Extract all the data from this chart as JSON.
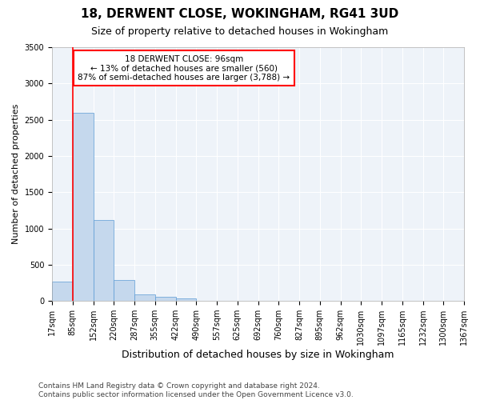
{
  "title": "18, DERWENT CLOSE, WOKINGHAM, RG41 3UD",
  "subtitle": "Size of property relative to detached houses in Wokingham",
  "xlabel": "Distribution of detached houses by size in Wokingham",
  "ylabel": "Number of detached properties",
  "bar_color": "#c5d8ed",
  "bar_edge_color": "#5b9bd5",
  "background_color": "#eef3f9",
  "grid_color": "#ffffff",
  "bar_values": [
    270,
    2600,
    1120,
    285,
    95,
    60,
    40,
    0,
    0,
    0,
    0,
    0,
    0,
    0,
    0,
    0,
    0,
    0,
    0,
    0
  ],
  "x_labels": [
    "17sqm",
    "85sqm",
    "152sqm",
    "220sqm",
    "287sqm",
    "355sqm",
    "422sqm",
    "490sqm",
    "557sqm",
    "625sqm",
    "692sqm",
    "760sqm",
    "827sqm",
    "895sqm",
    "962sqm",
    "1030sqm",
    "1097sqm",
    "1165sqm",
    "1232sqm",
    "1300sqm",
    "1367sqm"
  ],
  "ylim": [
    0,
    3500
  ],
  "yticks": [
    0,
    500,
    1000,
    1500,
    2000,
    2500,
    3000,
    3500
  ],
  "annotation_text": "18 DERWENT CLOSE: 96sqm\n← 13% of detached houses are smaller (560)\n87% of semi-detached houses are larger (3,788) →",
  "annotation_box_color": "white",
  "annotation_box_edge_color": "red",
  "vline_color": "red",
  "vline_x": 1,
  "footer_text": "Contains HM Land Registry data © Crown copyright and database right 2024.\nContains public sector information licensed under the Open Government Licence v3.0.",
  "title_fontsize": 11,
  "subtitle_fontsize": 9,
  "xlabel_fontsize": 9,
  "ylabel_fontsize": 8,
  "tick_fontsize": 7,
  "annotation_fontsize": 7.5,
  "footer_fontsize": 6.5
}
